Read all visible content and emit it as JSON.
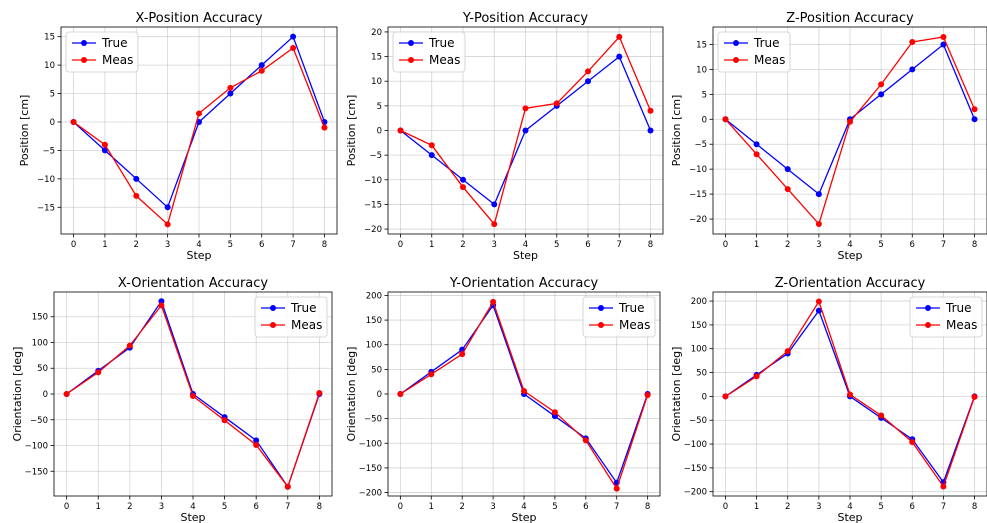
{
  "chart_data": [
    {
      "type": "line",
      "title": "X-Position Accuracy",
      "xlabel": "Step",
      "ylabel": "Position [cm]",
      "x": [
        0,
        1,
        2,
        3,
        4,
        5,
        6,
        7,
        8
      ],
      "xlim": [
        -0.4,
        8.4
      ],
      "ylim": [
        -19.7,
        16.7
      ],
      "yticks": [
        -15,
        -10,
        -5,
        0,
        5,
        10,
        15
      ],
      "grid": true,
      "legend": "upper-left",
      "series": [
        {
          "name": "True",
          "color": "#0000ff",
          "values": [
            0,
            -5,
            -10,
            -15,
            0,
            5,
            10,
            15,
            0
          ]
        },
        {
          "name": "Meas",
          "color": "#ff0000",
          "values": [
            0,
            -4,
            -13,
            -18,
            1.5,
            6,
            9,
            13,
            -1
          ]
        }
      ]
    },
    {
      "type": "line",
      "title": "Y-Position Accuracy",
      "xlabel": "Step",
      "ylabel": "Position [cm]",
      "x": [
        0,
        1,
        2,
        3,
        4,
        5,
        6,
        7,
        8
      ],
      "xlim": [
        -0.4,
        8.4
      ],
      "ylim": [
        -21,
        21
      ],
      "yticks": [
        -20,
        -15,
        -10,
        -5,
        0,
        5,
        10,
        15,
        20
      ],
      "grid": true,
      "legend": "upper-left",
      "series": [
        {
          "name": "True",
          "color": "#0000ff",
          "values": [
            0,
            -5,
            -10,
            -15,
            0,
            5,
            10,
            15,
            0
          ]
        },
        {
          "name": "Meas",
          "color": "#ff0000",
          "values": [
            0,
            -3,
            -11.5,
            -19,
            4.5,
            5.5,
            12,
            19,
            4
          ]
        }
      ]
    },
    {
      "type": "line",
      "title": "Z-Position Accuracy",
      "xlabel": "Step",
      "ylabel": "Position [cm]",
      "x": [
        0,
        1,
        2,
        3,
        4,
        5,
        6,
        7,
        8
      ],
      "xlim": [
        -0.4,
        8.4
      ],
      "ylim": [
        -23,
        18.5
      ],
      "yticks": [
        -20,
        -15,
        -10,
        -5,
        0,
        5,
        10,
        15
      ],
      "grid": true,
      "legend": "upper-left",
      "series": [
        {
          "name": "True",
          "color": "#0000ff",
          "values": [
            0,
            -5,
            -10,
            -15,
            0,
            5,
            10,
            15,
            0
          ]
        },
        {
          "name": "Meas",
          "color": "#ff0000",
          "values": [
            0,
            -7,
            -14,
            -21,
            -0.5,
            7,
            15.5,
            16.5,
            2
          ]
        }
      ]
    },
    {
      "type": "line",
      "title": "X-Orientation Accuracy",
      "xlabel": "Step",
      "ylabel": "Orientation [deg]",
      "x": [
        0,
        1,
        2,
        3,
        4,
        5,
        6,
        7,
        8
      ],
      "xlim": [
        -0.4,
        8.4
      ],
      "ylim": [
        -198,
        198
      ],
      "yticks": [
        -150,
        -100,
        -50,
        0,
        50,
        100,
        150
      ],
      "grid": true,
      "legend": "upper-right",
      "series": [
        {
          "name": "True",
          "color": "#0000ff",
          "values": [
            0,
            45,
            90,
            180,
            0,
            -45,
            -90,
            -180,
            0
          ]
        },
        {
          "name": "Meas",
          "color": "#ff0000",
          "values": [
            0,
            42,
            94,
            172,
            -4,
            -51,
            -99,
            -180,
            2
          ]
        }
      ]
    },
    {
      "type": "line",
      "title": "Y-Orientation Accuracy",
      "xlabel": "Step",
      "ylabel": "Orientation [deg]",
      "x": [
        0,
        1,
        2,
        3,
        4,
        5,
        6,
        7,
        8
      ],
      "xlim": [
        -0.4,
        8.4
      ],
      "ylim": [
        -207,
        207
      ],
      "yticks": [
        -200,
        -150,
        -100,
        -50,
        0,
        50,
        100,
        150,
        200
      ],
      "grid": true,
      "legend": "upper-right",
      "series": [
        {
          "name": "True",
          "color": "#0000ff",
          "values": [
            0,
            45,
            90,
            180,
            0,
            -45,
            -90,
            -180,
            0
          ]
        },
        {
          "name": "Meas",
          "color": "#ff0000",
          "values": [
            0,
            40,
            81,
            187,
            6,
            -37,
            -94,
            -192,
            -2
          ]
        }
      ]
    },
    {
      "type": "line",
      "title": "Z-Orientation Accuracy",
      "xlabel": "Step",
      "ylabel": "Orientation [deg]",
      "x": [
        0,
        1,
        2,
        3,
        4,
        5,
        6,
        7,
        8
      ],
      "xlim": [
        -0.4,
        8.4
      ],
      "ylim": [
        -209,
        219
      ],
      "yticks": [
        -200,
        -150,
        -100,
        -50,
        0,
        50,
        100,
        150,
        200
      ],
      "grid": true,
      "legend": "upper-right",
      "series": [
        {
          "name": "True",
          "color": "#0000ff",
          "values": [
            0,
            45,
            90,
            180,
            0,
            -45,
            -90,
            -180,
            0
          ]
        },
        {
          "name": "Meas",
          "color": "#ff0000",
          "values": [
            0,
            42,
            95,
            199,
            4,
            -40,
            -96,
            -189,
            -1
          ]
        }
      ]
    }
  ]
}
